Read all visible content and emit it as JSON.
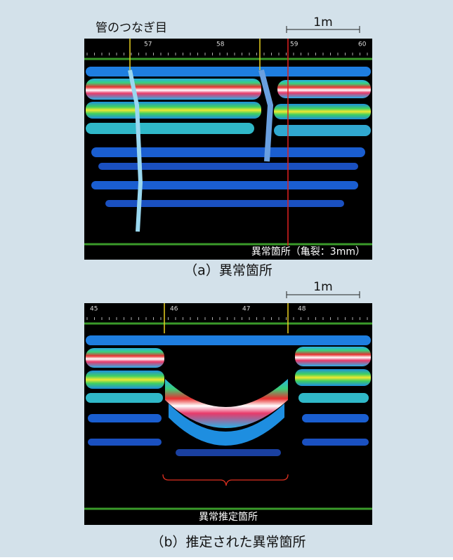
{
  "figure_a": {
    "joint_label": "管のつなぎ目",
    "scale_label": "1m",
    "ruler_labels": [
      "57",
      "58",
      "59",
      "60"
    ],
    "anomaly_label": "異常箇所（亀裂：3mm）",
    "caption": "（a）異常箇所"
  },
  "figure_b": {
    "scale_label": "1m",
    "ruler_labels": [
      "45",
      "46",
      "47",
      "48"
    ],
    "anomaly_label": "異常推定箇所",
    "caption": "（b）推定された異常箇所"
  }
}
